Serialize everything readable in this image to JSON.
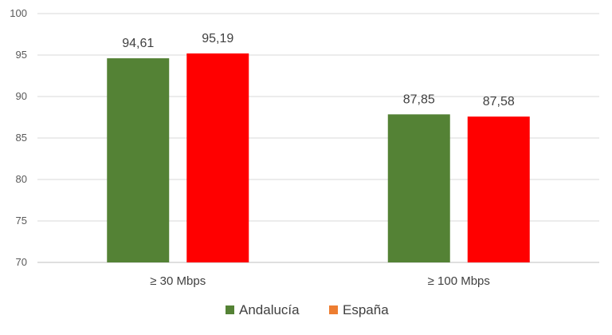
{
  "chart_data": {
    "type": "bar",
    "categories": [
      "≥ 30 Mbps",
      "≥ 100 Mbps"
    ],
    "series": [
      {
        "name": "Andalucía",
        "color": "#548235",
        "values": [
          94.61,
          87.85
        ],
        "labels": [
          "94,61",
          "87,85"
        ]
      },
      {
        "name": "España",
        "color": "#FF0000",
        "legend_color": "#ED7D31",
        "values": [
          95.19,
          87.58
        ],
        "labels": [
          "95,19",
          "87,58"
        ]
      }
    ],
    "ylim": [
      70,
      100
    ],
    "yticks": [
      "70",
      "75",
      "80",
      "85",
      "90",
      "95",
      "100"
    ],
    "grid": true,
    "legend": "bottom",
    "title": "",
    "xlabel": "",
    "ylabel": ""
  }
}
